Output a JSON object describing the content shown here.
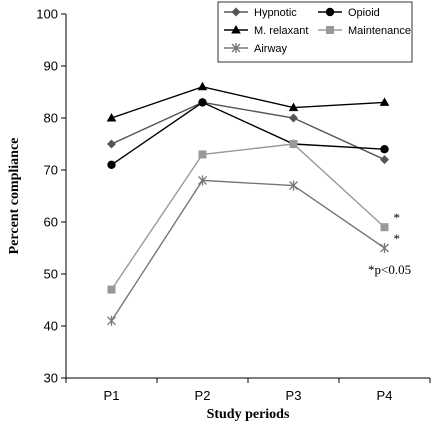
{
  "chart_data": {
    "type": "line",
    "xlabel": "Study periods",
    "ylabel": "Percent compliance",
    "ylim": [
      30,
      100
    ],
    "yticks": [
      30,
      40,
      50,
      60,
      70,
      80,
      90,
      100
    ],
    "categories": [
      "P1",
      "P2",
      "P3",
      "P4"
    ],
    "series": [
      {
        "name": "Hypnotic",
        "values": [
          75,
          83,
          80,
          72
        ],
        "color": "#555555",
        "marker": "diamond"
      },
      {
        "name": "Opioid",
        "values": [
          71,
          83,
          75,
          74
        ],
        "color": "#000000",
        "marker": "circle"
      },
      {
        "name": "M. relaxant",
        "values": [
          80,
          86,
          82,
          83
        ],
        "color": "#000000",
        "marker": "triangle"
      },
      {
        "name": "Maintenance",
        "values": [
          47,
          73,
          75,
          59
        ],
        "color": "#999999",
        "marker": "square"
      },
      {
        "name": "Airway",
        "values": [
          41,
          68,
          67,
          55
        ],
        "color": "#777777",
        "marker": "star"
      }
    ],
    "legend_position": "top-right",
    "annotations": [
      {
        "text": "*",
        "series": "Maintenance",
        "category": "P4"
      },
      {
        "text": "*",
        "series": "Airway",
        "category": "P4"
      },
      {
        "text": "*p<0.05"
      }
    ],
    "grid": false
  }
}
